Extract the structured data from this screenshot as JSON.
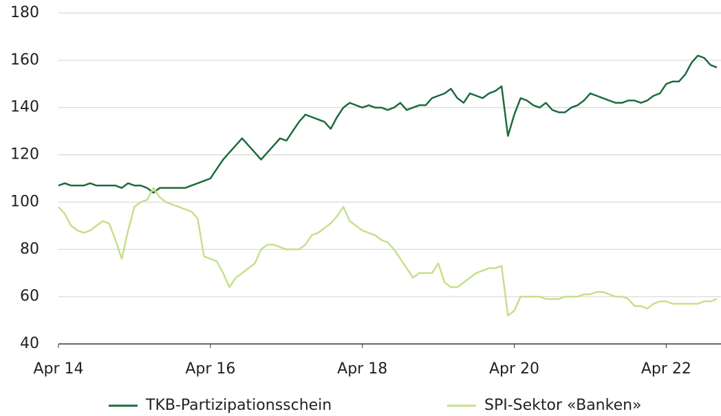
{
  "chart_data": {
    "type": "line",
    "x": [
      "2014-04",
      "2014-05",
      "2014-06",
      "2014-07",
      "2014-08",
      "2014-09",
      "2014-10",
      "2014-11",
      "2014-12",
      "2015-01",
      "2015-02",
      "2015-03",
      "2015-04",
      "2015-05",
      "2015-06",
      "2015-07",
      "2015-08",
      "2015-09",
      "2015-10",
      "2015-11",
      "2015-12",
      "2016-01",
      "2016-02",
      "2016-03",
      "2016-04",
      "2016-05",
      "2016-06",
      "2016-07",
      "2016-08",
      "2016-09",
      "2016-10",
      "2016-11",
      "2016-12",
      "2017-01",
      "2017-02",
      "2017-03",
      "2017-04",
      "2017-05",
      "2017-06",
      "2017-07",
      "2017-08",
      "2017-09",
      "2017-10",
      "2017-11",
      "2017-12",
      "2018-01",
      "2018-02",
      "2018-03",
      "2018-04",
      "2018-05",
      "2018-06",
      "2018-07",
      "2018-08",
      "2018-09",
      "2018-10",
      "2018-11",
      "2018-12",
      "2019-01",
      "2019-02",
      "2019-03",
      "2019-04",
      "2019-05",
      "2019-06",
      "2019-07",
      "2019-08",
      "2019-09",
      "2019-10",
      "2019-11",
      "2019-12",
      "2020-01",
      "2020-02",
      "2020-03",
      "2020-04",
      "2020-05",
      "2020-06",
      "2020-07",
      "2020-08",
      "2020-09",
      "2020-10",
      "2020-11",
      "2020-12",
      "2021-01",
      "2021-02",
      "2021-03",
      "2021-04",
      "2021-05",
      "2021-06",
      "2021-07",
      "2021-08",
      "2021-09",
      "2021-10",
      "2021-11",
      "2021-12",
      "2022-01",
      "2022-02",
      "2022-03",
      "2022-04",
      "2022-05",
      "2022-06",
      "2022-07",
      "2022-08",
      "2022-09",
      "2022-10",
      "2022-11",
      "2022-12"
    ],
    "series": [
      {
        "name": "TKB-Partizipationsschein",
        "color": "#1a6b3c",
        "values": [
          107,
          108,
          107,
          107,
          107,
          108,
          107,
          107,
          107,
          107,
          106,
          108,
          107,
          107,
          106,
          104,
          106,
          106,
          106,
          106,
          106,
          107,
          108,
          109,
          110,
          114,
          118,
          121,
          124,
          127,
          124,
          121,
          118,
          121,
          124,
          127,
          126,
          130,
          134,
          137,
          136,
          135,
          134,
          131,
          136,
          140,
          142,
          141,
          140,
          141,
          140,
          140,
          139,
          140,
          142,
          139,
          140,
          141,
          141,
          144,
          145,
          146,
          148,
          144,
          142,
          146,
          145,
          144,
          146,
          147,
          149,
          128,
          137,
          144,
          143,
          141,
          140,
          142,
          139,
          138,
          138,
          140,
          141,
          143,
          146,
          145,
          144,
          143,
          142,
          142,
          143,
          143,
          142,
          143,
          145,
          146,
          150,
          151,
          151,
          154,
          159,
          162,
          161,
          158,
          157
        ]
      },
      {
        "name": "SPI-Sektor «Banken»",
        "color": "#c5e08a",
        "values": [
          98,
          95,
          90,
          88,
          87,
          88,
          90,
          92,
          91,
          84,
          76,
          88,
          98,
          100,
          101,
          106,
          102,
          100,
          99,
          98,
          97,
          96,
          93,
          77,
          76,
          75,
          70,
          64,
          68,
          70,
          72,
          74,
          80,
          82,
          82,
          81,
          80,
          80,
          80,
          82,
          86,
          87,
          89,
          91,
          94,
          98,
          92,
          90,
          88,
          87,
          86,
          84,
          83,
          80,
          76,
          72,
          68,
          70,
          70,
          70,
          74,
          66,
          64,
          64,
          66,
          68,
          70,
          71,
          72,
          72,
          73,
          52,
          54,
          60,
          60,
          60,
          60,
          59,
          59,
          59,
          60,
          60,
          60,
          61,
          61,
          62,
          62,
          61,
          60,
          60,
          59,
          56,
          56,
          55,
          57,
          58,
          58,
          57,
          57,
          57,
          57,
          57,
          58,
          58,
          59
        ]
      }
    ],
    "xlim": [
      "2014-04",
      "2022-12"
    ],
    "xticks": [
      {
        "value": "2014-04",
        "label": "Apr 14"
      },
      {
        "value": "2016-04",
        "label": "Apr 16"
      },
      {
        "value": "2018-04",
        "label": "Apr 18"
      },
      {
        "value": "2020-04",
        "label": "Apr 20"
      },
      {
        "value": "2022-04",
        "label": "Apr 22"
      }
    ],
    "ylim": [
      40,
      180
    ],
    "yticks": [
      40,
      60,
      80,
      100,
      120,
      140,
      160,
      180
    ],
    "grid": true,
    "legend": "bottom"
  }
}
